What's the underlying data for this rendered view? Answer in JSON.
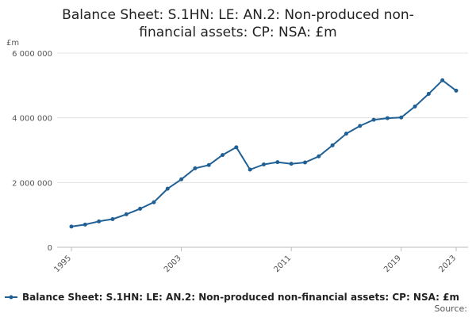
{
  "chart_data": {
    "type": "line",
    "title_lines": [
      "Balance Sheet: S.1HN: LE: AN.2: Non-produced non-",
      "financial assets: CP: NSA: £m"
    ],
    "unit_label": "£m",
    "y_ticks": [
      {
        "value": 0,
        "label": "0"
      },
      {
        "value": 2000000,
        "label": "2 000 000"
      },
      {
        "value": 4000000,
        "label": "4 000 000"
      },
      {
        "value": 6000000,
        "label": "6 000 000"
      }
    ],
    "ylim": [
      0,
      6000000
    ],
    "xlim": [
      1995,
      2023
    ],
    "x_ticks": [
      {
        "value": 1995,
        "label": "1995"
      },
      {
        "value": 2003,
        "label": "2003"
      },
      {
        "value": 2011,
        "label": "2011"
      },
      {
        "value": 2019,
        "label": "2019"
      },
      {
        "value": 2023,
        "label": "2023"
      }
    ],
    "grid": "horizontal",
    "legend_position": "bottom",
    "series": [
      {
        "name": "Balance Sheet: S.1HN: LE: AN.2: Non-produced non-financial assets: CP: NSA: £m",
        "color": "#206095",
        "x": [
          1995,
          1996,
          1997,
          1998,
          1999,
          2000,
          2001,
          2002,
          2003,
          2004,
          2005,
          2006,
          2007,
          2008,
          2009,
          2010,
          2011,
          2012,
          2013,
          2014,
          2015,
          2016,
          2017,
          2018,
          2019,
          2020,
          2021,
          2022,
          2023
        ],
        "values": [
          640000,
          700000,
          800000,
          870000,
          1020000,
          1190000,
          1390000,
          1810000,
          2100000,
          2440000,
          2540000,
          2850000,
          3090000,
          2400000,
          2560000,
          2630000,
          2580000,
          2620000,
          2810000,
          3150000,
          3510000,
          3750000,
          3940000,
          3990000,
          4010000,
          4350000,
          4740000,
          5160000,
          4840000
        ]
      }
    ]
  },
  "footer": {
    "source_label": "Source:"
  }
}
